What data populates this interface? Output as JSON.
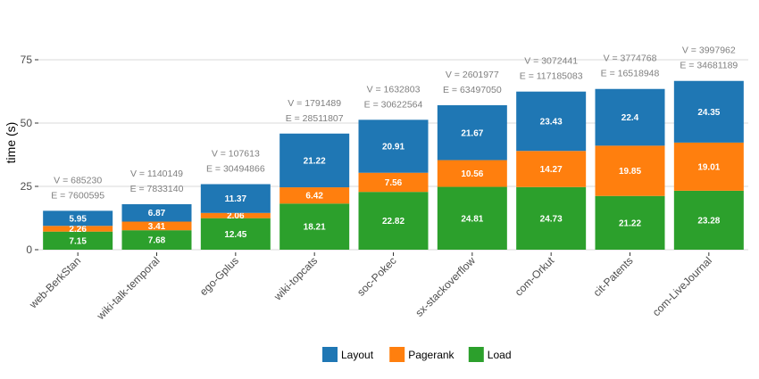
{
  "chart_data": {
    "type": "bar",
    "stacked": true,
    "ylabel": "time (s)",
    "xlabel": "",
    "ylim": [
      0,
      75
    ],
    "yticks": [
      0,
      25,
      50,
      75
    ],
    "grid": true,
    "legend_position": "bottom",
    "categories": [
      "web-BerkStan",
      "wiki-talk-temporal",
      "ego-Gplus",
      "wiki-topcats",
      "soc-Pokec",
      "sx-stackoverflow",
      "com-Orkut",
      "cit-Patents",
      "com-LiveJournal"
    ],
    "series": [
      {
        "name": "Load",
        "color": "#2ca02c",
        "values": [
          7.15,
          7.68,
          12.45,
          18.21,
          22.82,
          24.81,
          24.73,
          21.22,
          23.28
        ]
      },
      {
        "name": "Pagerank",
        "color": "#ff7f0e",
        "values": [
          2.26,
          3.41,
          2.06,
          6.42,
          7.56,
          10.56,
          14.27,
          19.85,
          19.01
        ]
      },
      {
        "name": "Layout",
        "color": "#1f77b4",
        "values": [
          5.95,
          6.87,
          11.37,
          21.22,
          20.91,
          21.67,
          23.43,
          22.4,
          24.35
        ]
      }
    ],
    "annotations": [
      [
        "V = 685230",
        "E = 7600595"
      ],
      [
        "V = 1140149",
        "E = 7833140"
      ],
      [
        "V = 107613",
        "E = 30494866"
      ],
      [
        "V = 1791489",
        "E = 28511807"
      ],
      [
        "V = 1632803",
        "E = 30622564"
      ],
      [
        "V = 2601977",
        "E = 63497050"
      ],
      [
        "V = 3072441",
        "E = 117185083"
      ],
      [
        "V = 3774768",
        "E = 16518948"
      ],
      [
        "V = 3997962",
        "E = 34681189"
      ]
    ],
    "legend": [
      "Layout",
      "Pagerank",
      "Load"
    ]
  }
}
